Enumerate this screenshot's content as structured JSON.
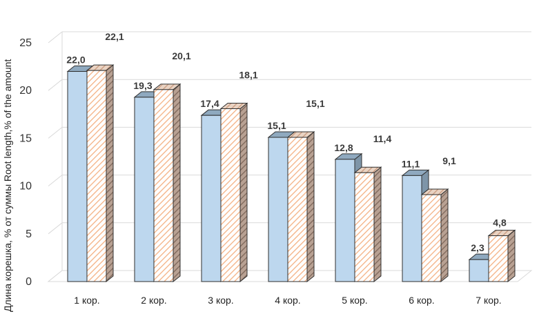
{
  "chart_data": {
    "type": "bar",
    "title": "",
    "xlabel": "",
    "ylabel": "Длина корешка, % от суммы  Root length,% of the amount",
    "ylim": [
      0,
      25
    ],
    "yticks": [
      0,
      5,
      10,
      15,
      20,
      25
    ],
    "grid": true,
    "legend": "none",
    "categories": [
      "1 кор.",
      "2 кор.",
      "3 кор.",
      "4 кор.",
      "5 кор.",
      "6 кор.",
      "7 кор."
    ],
    "series": [
      {
        "values": [
          22.0,
          19.3,
          17.4,
          15.1,
          12.8,
          11.1,
          2.3
        ],
        "labels": [
          "22,0",
          "19,3",
          "17,4",
          "15,1",
          "12,8",
          "11,1",
          "2,3"
        ],
        "color": "#bdd7ee",
        "fill": "solid"
      },
      {
        "values": [
          22.1,
          20.1,
          18.1,
          15.1,
          11.4,
          9.1,
          4.8
        ],
        "labels": [
          "22,1",
          "20,1",
          "18,1",
          "15,1",
          "11,4",
          "9,1",
          "4,8"
        ],
        "color": "#f4b183",
        "fill": "hatched"
      }
    ]
  }
}
